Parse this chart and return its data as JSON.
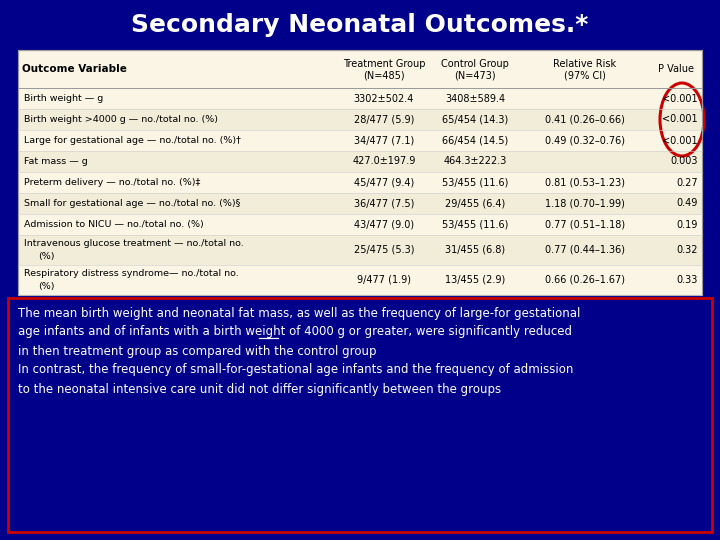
{
  "title": "Secondary Neonatal Outcomes.*",
  "background_color": "#00008B",
  "table_bg": "#FAF5E4",
  "highlight_color": "#8B0000",
  "circle_color": "#CC0000",
  "col_headers_line1": [
    "Outcome Variable",
    "Treatment Group",
    "Control Group",
    "Relative Risk",
    "P Value"
  ],
  "col_headers_line2": [
    "",
    "(N=485)",
    "(N=473)",
    "(97% CI)",
    ""
  ],
  "rows": [
    [
      "Birth weight — g",
      "3302±502.4",
      "3408±589.4",
      "",
      "<0.001"
    ],
    [
      "Birth weight >4000 g — no./total no. (%)",
      "28/477 (5.9)",
      "65/454 (14.3)",
      "0.41 (0.26–0.66)",
      "<0.001"
    ],
    [
      "Large for gestational age — no./total no. (%)†",
      "34/477 (7.1)",
      "66/454 (14.5)",
      "0.49 (0.32–0.76)",
      "<0.001"
    ],
    [
      "Fat mass — g",
      "427.0±197.9",
      "464.3±222.3",
      "",
      "0.003"
    ],
    [
      "Preterm delivery — no./total no. (%)‡",
      "45/477 (9.4)",
      "53/455 (11.6)",
      "0.81 (0.53–1.23)",
      "0.27"
    ],
    [
      "Small for gestational age — no./total no. (%)§",
      "36/477 (7.5)",
      "29/455 (6.4)",
      "1.18 (0.70–1.99)",
      "0.49"
    ],
    [
      "Admission to NICU — no./total no. (%)",
      "43/477 (9.0)",
      "53/455 (11.6)",
      "0.77 (0.51–1.18)",
      "0.19"
    ],
    [
      "Intravenous glucose treatment — no./total no.\n    (%)",
      "25/475 (5.3)",
      "31/455 (6.8)",
      "0.77 (0.44–1.36)",
      "0.32"
    ],
    [
      "Respiratory distress syndrome— no./total no.\n    (%)",
      "9/477 (1.9)",
      "13/455 (2.9)",
      "0.66 (0.26–1.67)",
      "0.33"
    ]
  ],
  "footer_lines": [
    "The mean birth weight and neonatal fat mass, as well as the frequency of large-for gestational",
    "age infants and of infants with a birth weight of 4000 g or greater, were significantly reduced",
    "in then treatment group as compared with the control group",
    "In contrast, the frequency of small-for-gestational age infants and the frequency of admission",
    "to the neonatal intensive care unit did not differ significantly between the groups"
  ],
  "title_color": "#FFFFFF",
  "table_text_color": "#000000",
  "footer_text_color": "#FFFFFF"
}
